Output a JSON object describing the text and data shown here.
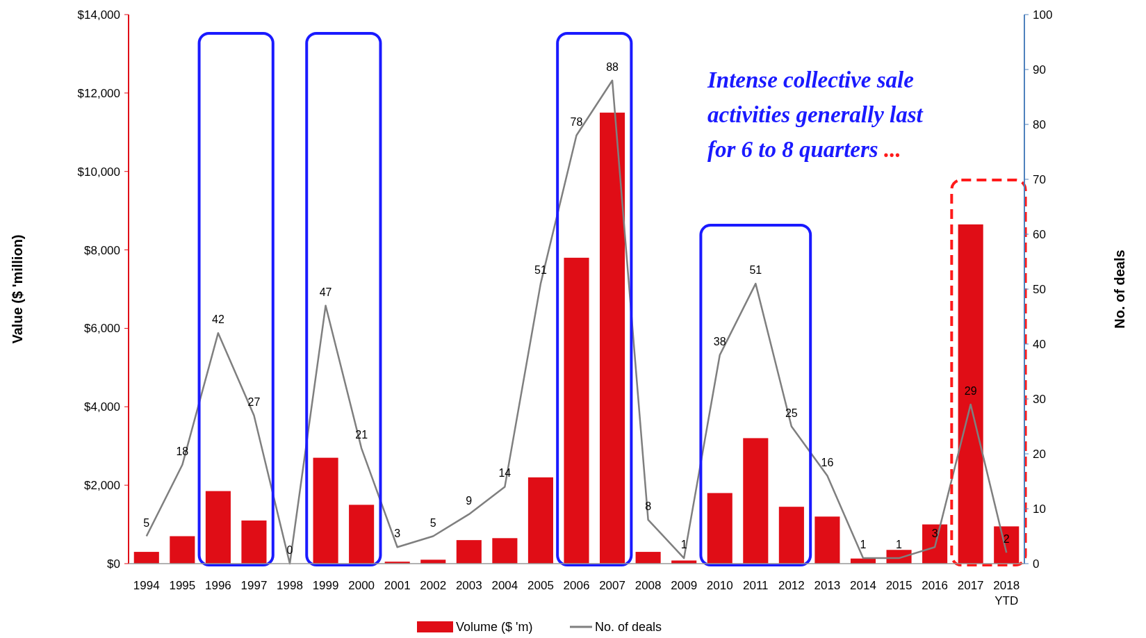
{
  "chart_data": {
    "type": "bar",
    "ylabel": "Value ($ 'million)",
    "y2label": "No. of deals",
    "categories": [
      "1994",
      "1995",
      "1996",
      "1997",
      "1998",
      "1999",
      "2000",
      "2001",
      "2002",
      "2003",
      "2004",
      "2005",
      "2006",
      "2007",
      "2008",
      "2009",
      "2010",
      "2011",
      "2012",
      "2013",
      "2014",
      "2015",
      "2016",
      "2017",
      "2018 YTD"
    ],
    "series": [
      {
        "name": "Volume ($ 'm)",
        "color": "#e00d16",
        "values": [
          300,
          700,
          1850,
          1100,
          0,
          2700,
          1500,
          50,
          100,
          600,
          650,
          2200,
          7800,
          11500,
          300,
          80,
          1800,
          3200,
          1450,
          1200,
          130,
          350,
          1000,
          8650,
          950
        ]
      },
      {
        "name": "No. of deals",
        "type": "line",
        "axis": "y2",
        "color": "#7f7f7f",
        "data_labels": true,
        "values": [
          5,
          18,
          42,
          27,
          0,
          47,
          21,
          3,
          5,
          9,
          14,
          51,
          78,
          88,
          8,
          1,
          38,
          51,
          25,
          16,
          1,
          1,
          3,
          29,
          2
        ]
      }
    ],
    "ylim": [
      0,
      14000
    ],
    "yticks": [
      {
        "value": 0,
        "label": "$0"
      },
      {
        "value": 2000,
        "label": "$2,000"
      },
      {
        "value": 4000,
        "label": "$4,000"
      },
      {
        "value": 6000,
        "label": "$6,000"
      },
      {
        "value": 8000,
        "label": "$8,000"
      },
      {
        "value": 10000,
        "label": "$10,000"
      },
      {
        "value": 12000,
        "label": "$12,000"
      },
      {
        "value": 14000,
        "label": "$14,000"
      }
    ],
    "y2lim": [
      0,
      100
    ],
    "y2ticks": [
      0,
      10,
      20,
      30,
      40,
      50,
      60,
      70,
      80,
      90,
      100
    ],
    "annotations": [
      "Intense collective sale\nactivities generally last\nfor 6 to 8 quarters ..."
    ],
    "legend": "bottom",
    "grid": false
  }
}
